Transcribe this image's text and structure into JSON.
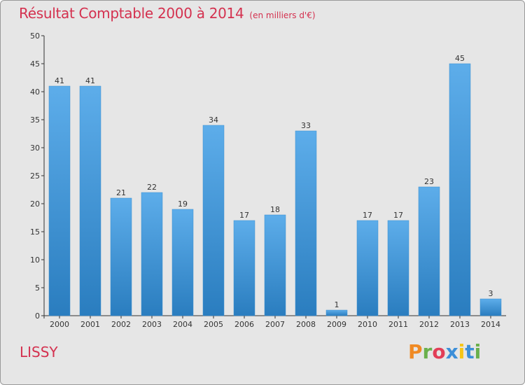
{
  "header": {
    "title": "Résultat Comptable 2000 à 2014",
    "subtitle": "(en milliers d'€)"
  },
  "footer": {
    "commune": "LISSY",
    "brand": "Proxiti"
  },
  "colors": {
    "title": "#d4314f",
    "bar_light": "#5dadea",
    "bar_dark": "#2a7dbf",
    "axis": "#333333",
    "grid": "#bdbdbd",
    "background": "#e6e6e6",
    "brand_letters": [
      "#f08a24",
      "#6ab04c",
      "#e23e57",
      "#3c8fd8",
      "#f5c518",
      "#3c8fd8",
      "#6ab04c"
    ]
  },
  "chart_data": {
    "type": "bar",
    "title": "Résultat Comptable 2000 à 2014",
    "subtitle": "(en milliers d'€)",
    "xlabel": "",
    "ylabel": "",
    "categories": [
      "2000",
      "2001",
      "2002",
      "2003",
      "2004",
      "2005",
      "2006",
      "2007",
      "2008",
      "2009",
      "2010",
      "2011",
      "2012",
      "2013",
      "2014"
    ],
    "values": [
      41,
      41,
      21,
      22,
      19,
      34,
      17,
      18,
      33,
      1,
      17,
      17,
      23,
      45,
      3
    ],
    "ylim": [
      0,
      50
    ],
    "yticks": [
      0,
      5,
      10,
      15,
      20,
      25,
      30,
      35,
      40,
      45,
      50
    ],
    "grid": false,
    "data_labels": true
  }
}
